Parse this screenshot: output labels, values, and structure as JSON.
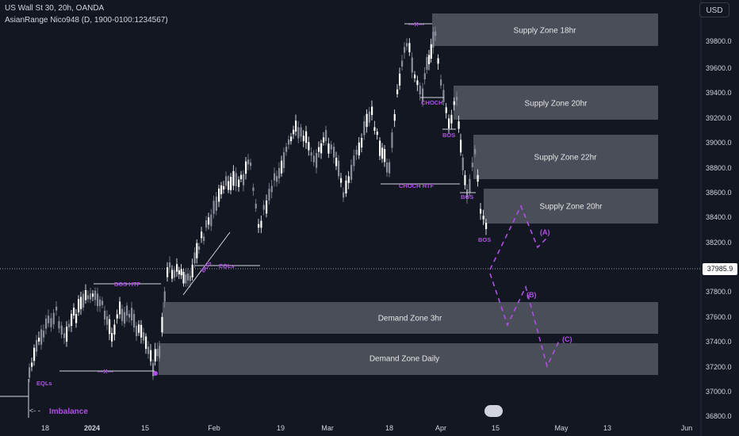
{
  "header": {
    "symbol_line": "US Wall St 30, 20h, OANDA",
    "indicator_line": "AsianRange Nico948 (D, 1900-0100:1234567)"
  },
  "currency": "USD",
  "y_axis": {
    "ticks": [
      "39800.0",
      "39600.0",
      "39400.0",
      "39200.0",
      "39000.0",
      "38800.0",
      "38600.0",
      "38400.0",
      "38200.0",
      "37800.0",
      "37600.0",
      "37400.0",
      "37200.0",
      "37000.0",
      "36800.0"
    ],
    "current_price": "37985.9"
  },
  "x_axis": {
    "ticks": [
      {
        "label": "18",
        "bold": false
      },
      {
        "label": "2024",
        "bold": true
      },
      {
        "label": "15",
        "bold": false
      },
      {
        "label": "Feb",
        "bold": false
      },
      {
        "label": "19",
        "bold": false
      },
      {
        "label": "Mar",
        "bold": false
      },
      {
        "label": "18",
        "bold": false
      },
      {
        "label": "Apr",
        "bold": false
      },
      {
        "label": "15",
        "bold": false
      },
      {
        "label": "May",
        "bold": false
      },
      {
        "label": "13",
        "bold": false
      },
      {
        "label": "Jun",
        "bold": false
      }
    ]
  },
  "zones": {
    "supply_18hr": "Supply Zone 18hr",
    "supply_20hr_a": "Supply Zone 20hr",
    "supply_22hr": "Supply Zone 22hr",
    "supply_20hr_b": "Supply Zone 20hr",
    "demand_3hr": "Demand Zone 3hr",
    "demand_daily": "Demand Zone Daily"
  },
  "annotations": {
    "bos_htf": "BOS HTF",
    "eqls_top": "EQLs",
    "eqls_bottom": "EQLs",
    "x_bottom": "---X---",
    "x_top": "---X---",
    "choch": "CHOCH",
    "choch_htf": "CHOCH HTF",
    "bos_1": "BOS",
    "bos_2": "BOS",
    "bos_3": "BOS",
    "bos_diag": "BOS",
    "wave_a": "(A)",
    "wave_b": "(B)",
    "wave_c": "(C)",
    "imbalance": "Imbalance",
    "imbalance_arrow": "<- -"
  },
  "colors": {
    "background": "#131722",
    "zone": "#4a4e59",
    "annotation": "#b04fe6",
    "candle": "#ffffff",
    "candle_alt": "#8a8e99"
  }
}
